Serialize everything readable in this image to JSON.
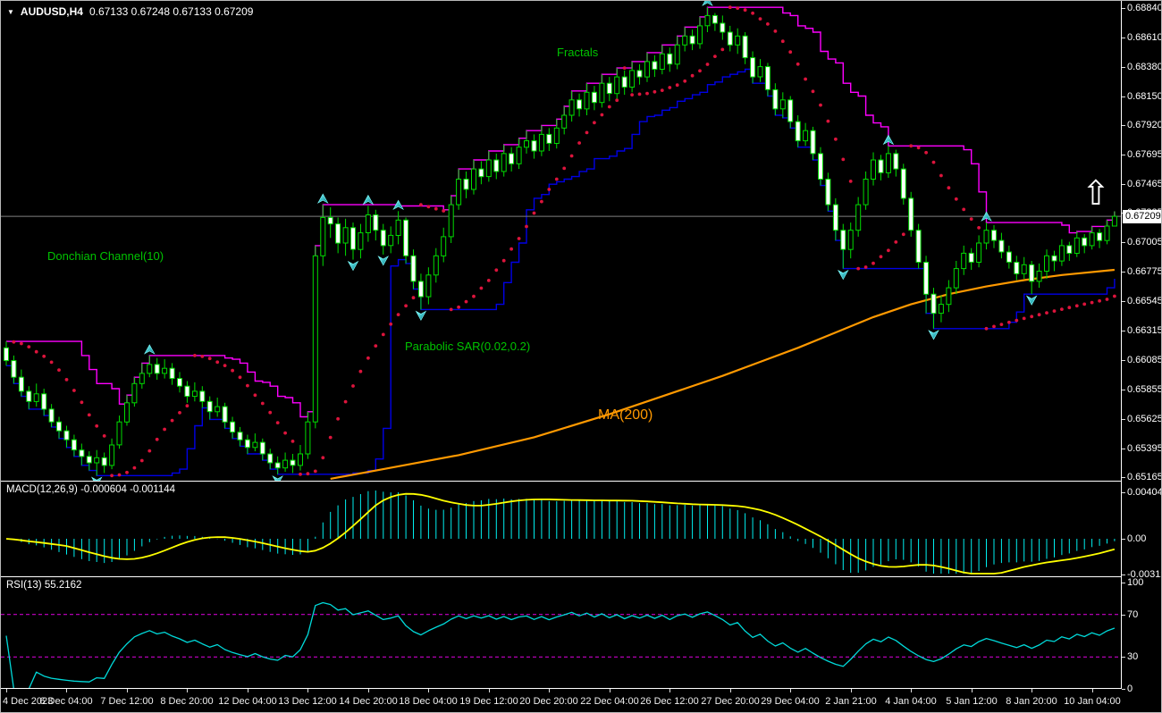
{
  "header": {
    "dropdown": "▼",
    "symbol": "AUDUSD,H4",
    "ohlc": "0.67133 0.67248 0.67133 0.67209"
  },
  "overlay_labels": {
    "donchian": "Donchian Channel(10)",
    "parabolic": "Parabolic SAR(0.02,0.2)",
    "fractals": "Fractals",
    "ma": "MA(200)",
    "up_arrow": "⇧"
  },
  "macd_panel": {
    "name": "MACD(12,26,9)",
    "values": "-0.000604 -0.001144"
  },
  "rsi_panel": {
    "name": "RSI(13)",
    "values": "55.2162"
  },
  "price_axis": {
    "current": "0.67209",
    "ticks": [
      "0.68840",
      "0.68610",
      "0.68380",
      "0.68150",
      "0.67920",
      "0.67695",
      "0.67465",
      "0.67235",
      "0.67005",
      "0.66775",
      "0.66545",
      "0.66315",
      "0.66085",
      "0.65855",
      "0.65625",
      "0.65395",
      "0.65165"
    ]
  },
  "macd_axis": {
    "ticks": [
      "0.00404",
      "0.00",
      "-0.00312"
    ],
    "values": [
      0.00404,
      0,
      -0.00312
    ]
  },
  "rsi_axis": {
    "ticks": [
      "100",
      "70",
      "30",
      "0"
    ],
    "values": [
      100,
      70,
      30,
      0
    ]
  },
  "time_axis": {
    "labels": [
      "4 Dec 2023",
      "6 Dec 04:00",
      "7 Dec 12:00",
      "8 Dec 20:00",
      "12 Dec 04:00",
      "13 Dec 12:00",
      "14 Dec 20:00",
      "18 Dec 04:00",
      "19 Dec 12:00",
      "20 Dec 20:00",
      "22 Dec 04:00",
      "26 Dec 12:00",
      "27 Dec 20:00",
      "29 Dec 04:00",
      "2 Jan 21:00",
      "4 Jan 04:00",
      "5 Jan 12:00",
      "8 Jan 20:00",
      "10 Jan 04:00"
    ],
    "bars_per_label": 8
  },
  "colors": {
    "background": "#000000",
    "panel_border": "#FFFFFF",
    "candle_outline": "#00DD00",
    "bull_fill": "#000000",
    "bear_fill": "#FFFFFF",
    "donchian_upper": "#FF00FF",
    "donchian_lower": "#0000E6",
    "parabolic_sar": "#DC143C",
    "ma200": "#FF9900",
    "fractal_arrow_light": "#7FFFFF",
    "fractal_arrow_dark": "#007C8C",
    "macd_histogram": "#00F0F0",
    "macd_signal": "#FFFF00",
    "rsi_line": "#00D9D9",
    "rsi_levels": "#C800C8",
    "price_line": "#808080",
    "label_green": "#00C400",
    "axis_text": "#FFFFFF",
    "price_tag_bg": "#FFFFFF",
    "price_tag_text": "#000000"
  },
  "chart_data": {
    "type": "candlestick",
    "title": "AUDUSD,H4",
    "symbol": "AUDUSD",
    "timeframe": "H4",
    "current_bar_ohlc": [
      0.67133,
      0.67248,
      0.67133,
      0.67209
    ],
    "current_price": 0.67209,
    "price_range_visible": [
      0.6514,
      0.68895
    ],
    "first_open": 0.6618,
    "candles_hlc": [
      [
        0.6623,
        0.6604,
        0.6608
      ],
      [
        0.6612,
        0.659,
        0.6595
      ],
      [
        0.6601,
        0.658,
        0.6584
      ],
      [
        0.6588,
        0.657,
        0.6576
      ],
      [
        0.659,
        0.6572,
        0.6582
      ],
      [
        0.6586,
        0.6565,
        0.657
      ],
      [
        0.6574,
        0.6556,
        0.656
      ],
      [
        0.6564,
        0.6547,
        0.6553
      ],
      [
        0.6557,
        0.654,
        0.6546
      ],
      [
        0.655,
        0.6533,
        0.6538
      ],
      [
        0.6543,
        0.6526,
        0.6533
      ],
      [
        0.6537,
        0.6522,
        0.6528
      ],
      [
        0.6538,
        0.6518,
        0.6532
      ],
      [
        0.6536,
        0.652,
        0.6526
      ],
      [
        0.6547,
        0.6523,
        0.6542
      ],
      [
        0.6565,
        0.6539,
        0.656
      ],
      [
        0.6581,
        0.6557,
        0.6575
      ],
      [
        0.6595,
        0.6572,
        0.659
      ],
      [
        0.6606,
        0.6586,
        0.6598
      ],
      [
        0.6612,
        0.6595,
        0.6605
      ],
      [
        0.661,
        0.6593,
        0.6598
      ],
      [
        0.6609,
        0.6594,
        0.6602
      ],
      [
        0.6606,
        0.6589,
        0.6594
      ],
      [
        0.6599,
        0.6583,
        0.6588
      ],
      [
        0.6592,
        0.6575,
        0.658
      ],
      [
        0.6591,
        0.6576,
        0.6584
      ],
      [
        0.6588,
        0.6571,
        0.6576
      ],
      [
        0.658,
        0.6562,
        0.6568
      ],
      [
        0.6579,
        0.6564,
        0.6572
      ],
      [
        0.6575,
        0.6555,
        0.656
      ],
      [
        0.6564,
        0.6547,
        0.6552
      ],
      [
        0.6556,
        0.6541,
        0.6546
      ],
      [
        0.655,
        0.6535,
        0.654
      ],
      [
        0.6551,
        0.6537,
        0.6544
      ],
      [
        0.6547,
        0.653,
        0.6535
      ],
      [
        0.6539,
        0.6523,
        0.6528
      ],
      [
        0.6533,
        0.6519,
        0.6524
      ],
      [
        0.6536,
        0.6521,
        0.653
      ],
      [
        0.6535,
        0.652,
        0.6526
      ],
      [
        0.6542,
        0.6522,
        0.6535
      ],
      [
        0.6568,
        0.6531,
        0.656
      ],
      [
        0.6698,
        0.6555,
        0.669
      ],
      [
        0.673,
        0.6682,
        0.672
      ],
      [
        0.6728,
        0.6704,
        0.6715
      ],
      [
        0.672,
        0.6692,
        0.67
      ],
      [
        0.6719,
        0.669,
        0.6712
      ],
      [
        0.6716,
        0.6687,
        0.6695
      ],
      [
        0.6715,
        0.6688,
        0.6708
      ],
      [
        0.6729,
        0.6701,
        0.6722
      ],
      [
        0.6726,
        0.6702,
        0.671
      ],
      [
        0.6715,
        0.6691,
        0.6698
      ],
      [
        0.6713,
        0.6692,
        0.6706
      ],
      [
        0.6725,
        0.6699,
        0.6718
      ],
      [
        0.672,
        0.6684,
        0.669
      ],
      [
        0.6695,
        0.6664,
        0.667
      ],
      [
        0.6676,
        0.6648,
        0.6658
      ],
      [
        0.6681,
        0.6652,
        0.6675
      ],
      [
        0.6696,
        0.6669,
        0.669
      ],
      [
        0.6712,
        0.6685,
        0.6705
      ],
      [
        0.6737,
        0.67,
        0.673
      ],
      [
        0.6758,
        0.6726,
        0.675
      ],
      [
        0.6756,
        0.6735,
        0.6742
      ],
      [
        0.6765,
        0.6738,
        0.6758
      ],
      [
        0.6764,
        0.6746,
        0.6752
      ],
      [
        0.6772,
        0.6748,
        0.6765
      ],
      [
        0.677,
        0.675,
        0.6756
      ],
      [
        0.6777,
        0.6752,
        0.677
      ],
      [
        0.6775,
        0.6756,
        0.6762
      ],
      [
        0.6782,
        0.6758,
        0.6775
      ],
      [
        0.6788,
        0.677,
        0.678
      ],
      [
        0.6785,
        0.6766,
        0.6772
      ],
      [
        0.6792,
        0.6768,
        0.6785
      ],
      [
        0.679,
        0.6772,
        0.6778
      ],
      [
        0.6797,
        0.6774,
        0.679
      ],
      [
        0.6807,
        0.6785,
        0.68
      ],
      [
        0.6819,
        0.6795,
        0.6812
      ],
      [
        0.6817,
        0.6799,
        0.6805
      ],
      [
        0.6825,
        0.68,
        0.6818
      ],
      [
        0.6823,
        0.6804,
        0.681
      ],
      [
        0.6832,
        0.6806,
        0.6825
      ],
      [
        0.683,
        0.6811,
        0.6817
      ],
      [
        0.6837,
        0.6813,
        0.683
      ],
      [
        0.6835,
        0.6816,
        0.6822
      ],
      [
        0.6842,
        0.6818,
        0.6835
      ],
      [
        0.684,
        0.6824,
        0.683
      ],
      [
        0.6849,
        0.6826,
        0.6842
      ],
      [
        0.6847,
        0.683,
        0.6836
      ],
      [
        0.6855,
        0.6832,
        0.6848
      ],
      [
        0.6853,
        0.6834,
        0.684
      ],
      [
        0.6862,
        0.6836,
        0.6855
      ],
      [
        0.6869,
        0.685,
        0.6862
      ],
      [
        0.6867,
        0.6851,
        0.6856
      ],
      [
        0.6877,
        0.6852,
        0.687
      ],
      [
        0.68845,
        0.6865,
        0.6878
      ],
      [
        0.688,
        0.6866,
        0.6872
      ],
      [
        0.6878,
        0.6859,
        0.6865
      ],
      [
        0.687,
        0.685,
        0.6855
      ],
      [
        0.6868,
        0.6848,
        0.6862
      ],
      [
        0.6865,
        0.684,
        0.6845
      ],
      [
        0.685,
        0.6825,
        0.683
      ],
      [
        0.6844,
        0.6826,
        0.6838
      ],
      [
        0.6841,
        0.6815,
        0.682
      ],
      [
        0.6825,
        0.68,
        0.6805
      ],
      [
        0.6818,
        0.6798,
        0.6812
      ],
      [
        0.6815,
        0.679,
        0.6795
      ],
      [
        0.68,
        0.6775,
        0.678
      ],
      [
        0.6794,
        0.6776,
        0.6788
      ],
      [
        0.6791,
        0.6765,
        0.677
      ],
      [
        0.6775,
        0.6745,
        0.675
      ],
      [
        0.6755,
        0.6725,
        0.673
      ],
      [
        0.6735,
        0.6702,
        0.671
      ],
      [
        0.6715,
        0.668,
        0.6695
      ],
      [
        0.6716,
        0.6688,
        0.671
      ],
      [
        0.6736,
        0.6705,
        0.673
      ],
      [
        0.6756,
        0.6726,
        0.675
      ],
      [
        0.6771,
        0.6745,
        0.6765
      ],
      [
        0.6769,
        0.6749,
        0.6755
      ],
      [
        0.6776,
        0.6751,
        0.677
      ],
      [
        0.6773,
        0.6752,
        0.6758
      ],
      [
        0.6762,
        0.673,
        0.6735
      ],
      [
        0.674,
        0.6705,
        0.671
      ],
      [
        0.6715,
        0.668,
        0.6685
      ],
      [
        0.669,
        0.6645,
        0.666
      ],
      [
        0.6665,
        0.6633,
        0.6645
      ],
      [
        0.6659,
        0.6638,
        0.6652
      ],
      [
        0.6671,
        0.6646,
        0.6665
      ],
      [
        0.6686,
        0.666,
        0.668
      ],
      [
        0.6698,
        0.6675,
        0.6692
      ],
      [
        0.6696,
        0.6679,
        0.6685
      ],
      [
        0.6706,
        0.6681,
        0.67
      ],
      [
        0.6716,
        0.6695,
        0.671
      ],
      [
        0.6714,
        0.6696,
        0.6702
      ],
      [
        0.6708,
        0.6688,
        0.6693
      ],
      [
        0.6698,
        0.668,
        0.6685
      ],
      [
        0.669,
        0.6671,
        0.6676
      ],
      [
        0.6689,
        0.6672,
        0.6683
      ],
      [
        0.6686,
        0.666,
        0.667
      ],
      [
        0.6684,
        0.6665,
        0.6678
      ],
      [
        0.6695,
        0.6672,
        0.669
      ],
      [
        0.6694,
        0.6678,
        0.6686
      ],
      [
        0.6703,
        0.6682,
        0.6698
      ],
      [
        0.6701,
        0.6686,
        0.6692
      ],
      [
        0.6709,
        0.6689,
        0.6704
      ],
      [
        0.6707,
        0.6692,
        0.6698
      ],
      [
        0.6713,
        0.6695,
        0.6708
      ],
      [
        0.6711,
        0.6696,
        0.6702
      ],
      [
        0.6718,
        0.6699,
        0.67133
      ],
      [
        0.67248,
        0.67133,
        0.67209
      ]
    ],
    "indicators": {
      "donchian": {
        "period": 10
      },
      "parabolic_sar": {
        "step": 0.02,
        "maximum": 0.2
      },
      "ma200": {
        "period": 200,
        "points": [
          [
            43,
            0.65155
          ],
          [
            50,
            0.6523
          ],
          [
            60,
            0.6534
          ],
          [
            70,
            0.6548
          ],
          [
            80,
            0.6566
          ],
          [
            90,
            0.6586
          ],
          [
            95,
            0.6596
          ],
          [
            100,
            0.6607
          ],
          [
            105,
            0.6618
          ],
          [
            110,
            0.663
          ],
          [
            115,
            0.6642
          ],
          [
            120,
            0.6652
          ],
          [
            125,
            0.666
          ],
          [
            130,
            0.6666
          ],
          [
            135,
            0.6671
          ],
          [
            140,
            0.6675
          ],
          [
            147,
            0.6679
          ]
        ]
      },
      "fractals": {
        "window": 5
      },
      "macd": {
        "fast": 12,
        "slow": 26,
        "signal": 9,
        "current_main": -0.000604,
        "current_signal": -0.001144
      },
      "rsi": {
        "period": 13,
        "current": 55.2162,
        "levels": [
          70,
          30
        ]
      }
    }
  }
}
